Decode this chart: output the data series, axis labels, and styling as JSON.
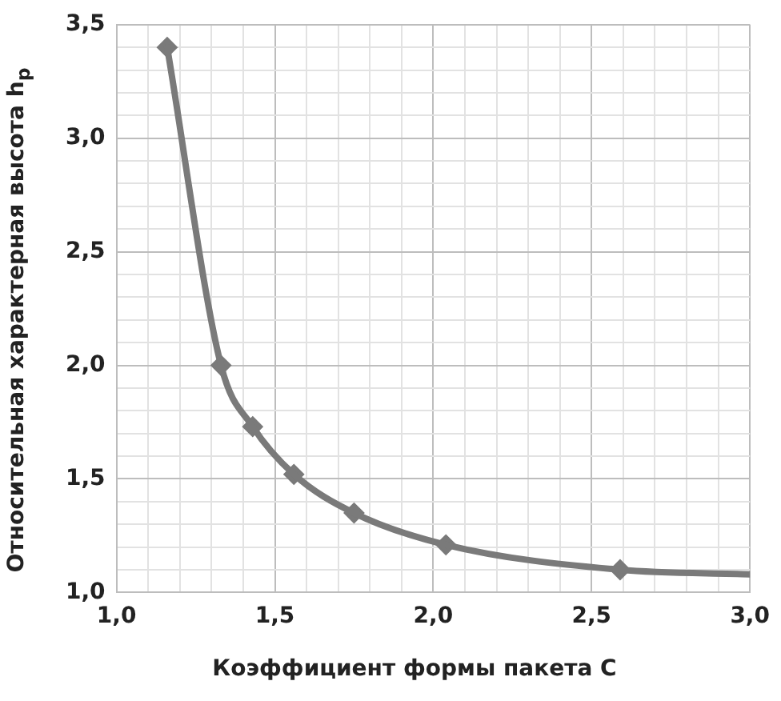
{
  "chart_data": {
    "type": "scatter",
    "xlabel": "Коэффициент формы пакета C",
    "ylabel": "Относительная характерная высота h$_{p}$",
    "xlim": [
      1.0,
      3.0
    ],
    "xticks": [
      {
        "value": 1.0,
        "label": "1,0"
      },
      {
        "value": 1.1,
        "label": null
      },
      {
        "value": 1.2,
        "label": null
      },
      {
        "value": 1.3,
        "label": null
      },
      {
        "value": 1.4,
        "label": null
      },
      {
        "value": 1.5,
        "label": "1,5"
      },
      {
        "value": 1.6,
        "label": null
      },
      {
        "value": 1.7,
        "label": null
      },
      {
        "value": 1.8,
        "label": null
      },
      {
        "value": 1.9,
        "label": null
      },
      {
        "value": 2.0,
        "label": "2,0"
      },
      {
        "value": 2.1,
        "label": null
      },
      {
        "value": 2.2,
        "label": null
      },
      {
        "value": 2.3,
        "label": null
      },
      {
        "value": 2.4,
        "label": null
      },
      {
        "value": 2.5,
        "label": "2,5"
      },
      {
        "value": 2.6,
        "label": null
      },
      {
        "value": 2.7,
        "label": null
      },
      {
        "value": 2.8,
        "label": null
      },
      {
        "value": 2.9,
        "label": null
      },
      {
        "value": 3.0,
        "label": "3,0"
      }
    ],
    "ylim": [
      1.0,
      3.5
    ],
    "yticks": [
      {
        "value": 1.0,
        "label": "1,0"
      },
      {
        "value": 1.1,
        "label": null
      },
      {
        "value": 1.2,
        "label": null
      },
      {
        "value": 1.3,
        "label": null
      },
      {
        "value": 1.4,
        "label": null
      },
      {
        "value": 1.5,
        "label": "1,5"
      },
      {
        "value": 1.6,
        "label": null
      },
      {
        "value": 1.7,
        "label": null
      },
      {
        "value": 1.8,
        "label": null
      },
      {
        "value": 1.9,
        "label": null
      },
      {
        "value": 2.0,
        "label": "2,0"
      },
      {
        "value": 2.1,
        "label": null
      },
      {
        "value": 2.2,
        "label": null
      },
      {
        "value": 2.3,
        "label": null
      },
      {
        "value": 2.4,
        "label": null
      },
      {
        "value": 2.5,
        "label": "2,5"
      },
      {
        "value": 2.6,
        "label": null
      },
      {
        "value": 2.7,
        "label": null
      },
      {
        "value": 2.8,
        "label": null
      },
      {
        "value": 2.9,
        "label": null
      },
      {
        "value": 3.0,
        "label": "3,0"
      },
      {
        "value": 3.1,
        "label": null
      },
      {
        "value": 3.2,
        "label": null
      },
      {
        "value": 3.3,
        "label": null
      },
      {
        "value": 3.4,
        "label": null
      },
      {
        "value": 3.5,
        "label": "3,5"
      }
    ],
    "grid": true,
    "legend": false,
    "series": [
      {
        "type": "line",
        "color": "#7a7a7a",
        "marker": "none",
        "line_style": "solid",
        "x": [
          1.16,
          1.33,
          1.43,
          1.56,
          1.75,
          2.04,
          2.59,
          3.0
        ],
        "values": [
          3.4,
          2.0,
          1.73,
          1.52,
          1.35,
          1.21,
          1.1,
          1.08
        ]
      },
      {
        "color": "#7a7a7a",
        "marker": "diamond",
        "x": [
          1.16,
          1.33,
          1.43,
          1.56,
          1.75,
          2.04,
          2.59
        ],
        "values": [
          3.4,
          2.0,
          1.73,
          1.52,
          1.35,
          1.21,
          1.1
        ]
      }
    ]
  }
}
